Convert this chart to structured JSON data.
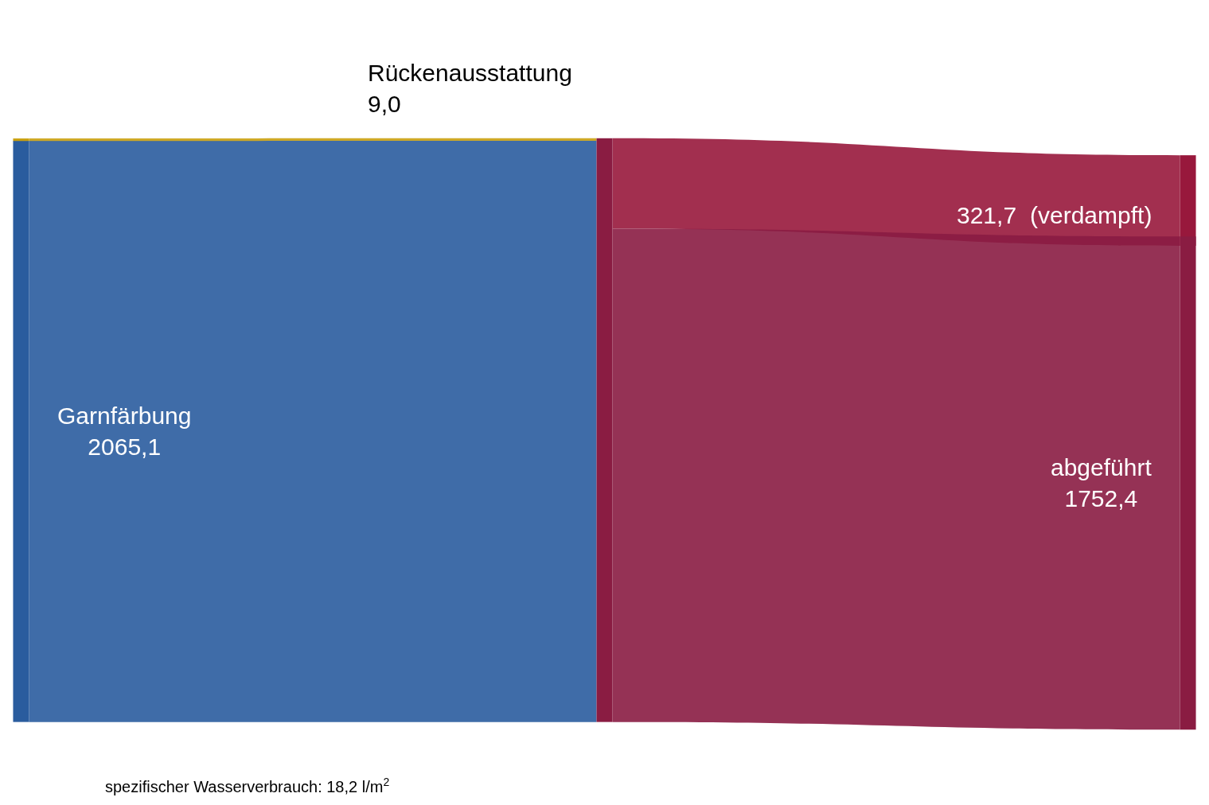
{
  "chart_data": {
    "type": "other",
    "categories": [
      "Garnfärbung",
      "Rückenausstattung",
      "(verdampft)",
      "abgeführt"
    ],
    "values": [
      2065.1,
      9.0,
      321.7,
      1752.4
    ],
    "value_labels": [
      "2065,1",
      "9,0",
      "321,7",
      "1752,4"
    ],
    "colors": [
      "#2a5c9e",
      "#c9a010",
      "#98183c",
      "#8a1c42"
    ],
    "annotations": [
      "spezifischer Wasserverbrauch: 18,2 l/m$^{2}$"
    ]
  }
}
